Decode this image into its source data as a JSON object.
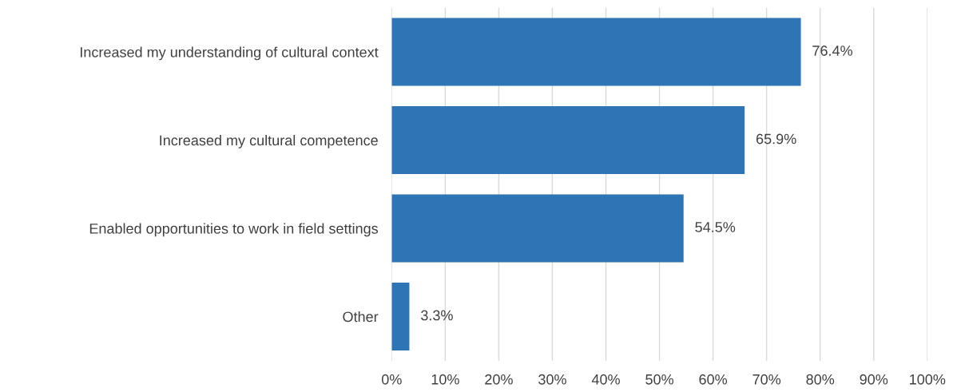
{
  "chart_data": {
    "type": "bar",
    "orientation": "horizontal",
    "categories": [
      "Increased my understanding of cultural context",
      "Increased my cultural competence",
      "Enabled opportunities to work in field settings",
      "Other"
    ],
    "values": [
      76.4,
      65.9,
      54.5,
      3.3
    ],
    "value_labels": [
      "76.4%",
      "65.9%",
      "54.5%",
      "3.3%"
    ],
    "color": "#2e75b6",
    "xlim": [
      0,
      100
    ],
    "xticks": [
      {
        "value": 0,
        "label": "0%"
      },
      {
        "value": 10,
        "label": "10%"
      },
      {
        "value": 20,
        "label": "20%"
      },
      {
        "value": 30,
        "label": "30%"
      },
      {
        "value": 40,
        "label": "40%"
      },
      {
        "value": 50,
        "label": "50%"
      },
      {
        "value": 60,
        "label": "60%"
      },
      {
        "value": 70,
        "label": "70%"
      },
      {
        "value": 80,
        "label": "80%"
      },
      {
        "value": 90,
        "label": "90%"
      },
      {
        "value": 100,
        "label": "100%"
      }
    ],
    "grid": "x",
    "legend": false
  }
}
